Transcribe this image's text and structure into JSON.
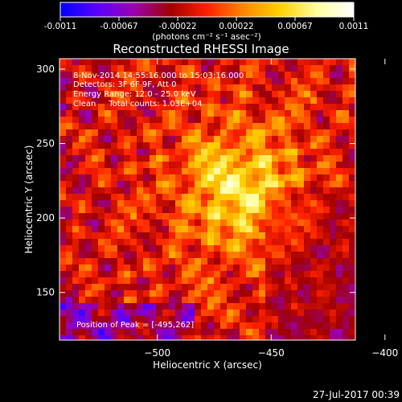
{
  "chart_data": {
    "type": "heatmap",
    "title": "Reconstructed RHESSI Image",
    "xlabel": "Heliocentric X (arcsec)",
    "ylabel": "Heliocentric Y (arcsec)",
    "xlim": [
      -543,
      -413
    ],
    "ylim": [
      118,
      307
    ],
    "xticks": [
      -500,
      -450,
      -400
    ],
    "yticks": [
      150,
      200,
      250,
      300
    ],
    "colorbar": {
      "min": -0.0011,
      "max": 0.0011,
      "ticks": [
        "-0.0011",
        "-0.00067",
        "-0.00022",
        "0.00022",
        "0.00067",
        "0.0011"
      ],
      "unit_label": "(photons cm⁻² s⁻¹ asec⁻²)",
      "colormap": [
        "#0000ff",
        "#5a00ff",
        "#9a00b0",
        "#a00000",
        "#ff2000",
        "#ff8800",
        "#ffd000",
        "#ffffa0",
        "#ffffff"
      ]
    },
    "annotations": {
      "line1": "8-Nov-2014 14:55:16.000 to 15:03:16.000",
      "line2": "Detectors: 3F 6F 9F, Att 0",
      "line3": "Energy Range: 12.0 - 25.0 keV",
      "line4": "Clean     Total counts: 1.03E+04",
      "peak": "Position of Peak = [-495,262]"
    },
    "peak_position": [
      -495,
      262
    ],
    "footer_date": "27-Jul-2017 00:39"
  }
}
